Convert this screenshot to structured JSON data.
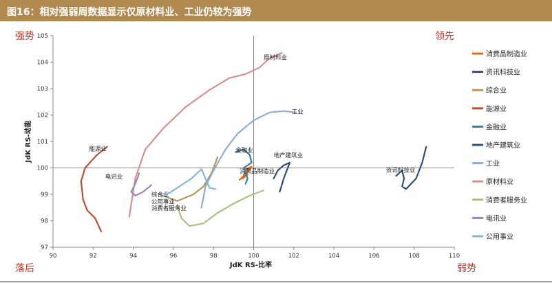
{
  "figure": {
    "title": "图16：相对强弱周数据显示仅原材料业、工业仍较为强势",
    "quadrants": {
      "top_left": "强势",
      "top_right": "领先",
      "bottom_left": "落后",
      "bottom_right": "弱势"
    }
  },
  "chart_data": {
    "type": "line",
    "xlabel": "JdK RS-比率",
    "ylabel": "JdK RS-动能",
    "xlim": [
      90,
      110
    ],
    "ylim": [
      97,
      105
    ],
    "xticks": [
      90,
      92,
      94,
      96,
      98,
      100,
      102,
      104,
      106,
      108,
      110
    ],
    "yticks": [
      97,
      98,
      99,
      100,
      101,
      102,
      103,
      104,
      105
    ],
    "center": [
      100,
      100
    ],
    "legend_position": "right",
    "series": [
      {
        "name": "消费品制造业",
        "color": "#e06c1f",
        "label_at": [
          99.3,
          99.8
        ],
        "points": [
          [
            99.3,
            99.55
          ],
          [
            99.5,
            99.7
          ],
          [
            99.6,
            99.95
          ],
          [
            99.9,
            100.05
          ],
          [
            99.7,
            99.85
          ],
          [
            99.45,
            99.6
          ],
          [
            99.7,
            99.75
          ]
        ]
      },
      {
        "name": "资讯科技业",
        "color": "#2f4e7a",
        "label_at": [
          106.6,
          99.85
        ],
        "points": [
          [
            107.1,
            99.7
          ],
          [
            107.4,
            99.9
          ],
          [
            107.5,
            99.6
          ],
          [
            107.4,
            99.3
          ],
          [
            107.6,
            99.2
          ],
          [
            108.1,
            99.6
          ],
          [
            108.4,
            100.2
          ],
          [
            108.6,
            100.8
          ]
        ]
      },
      {
        "name": "综合业",
        "color": "#b8975a",
        "label_at": [
          94.9,
          98.92
        ],
        "points": [
          [
            95.3,
            99.0
          ],
          [
            96.2,
            98.75
          ],
          [
            97.0,
            99.0
          ],
          [
            97.5,
            99.3
          ],
          [
            97.9,
            99.8
          ],
          [
            98.2,
            100.4
          ]
        ]
      },
      {
        "name": "能源业",
        "color": "#b84f35",
        "label_at": [
          91.8,
          100.65
        ],
        "points": [
          [
            92.4,
            97.6
          ],
          [
            92.1,
            98.1
          ],
          [
            91.7,
            98.4
          ],
          [
            91.5,
            98.8
          ],
          [
            91.4,
            99.5
          ],
          [
            91.6,
            100.0
          ],
          [
            92.2,
            100.5
          ],
          [
            92.7,
            100.8
          ]
        ]
      },
      {
        "name": "金融业",
        "color": "#2e7fa8",
        "label_at": [
          99.1,
          100.6
        ],
        "points": [
          [
            99.1,
            100.6
          ],
          [
            99.5,
            100.7
          ],
          [
            99.8,
            100.5
          ],
          [
            99.9,
            100.2
          ],
          [
            99.5,
            100.0
          ],
          [
            99.7,
            99.6
          ],
          [
            99.6,
            99.4
          ]
        ]
      },
      {
        "name": "地产建筑业",
        "color": "#2f4e7a",
        "label_at": [
          101.0,
          100.4
        ],
        "points": [
          [
            101.0,
            99.6
          ],
          [
            101.2,
            99.9
          ],
          [
            101.5,
            100.1
          ],
          [
            101.8,
            100.2
          ],
          [
            101.5,
            99.6
          ],
          [
            101.3,
            99.1
          ]
        ]
      },
      {
        "name": "工业",
        "color": "#8faad6",
        "label_at": [
          101.9,
          102.05
        ],
        "points": [
          [
            97.4,
            98.5
          ],
          [
            97.6,
            99.3
          ],
          [
            98.0,
            99.9
          ],
          [
            98.6,
            100.7
          ],
          [
            99.2,
            101.3
          ],
          [
            100.0,
            101.8
          ],
          [
            100.8,
            102.1
          ],
          [
            101.5,
            102.15
          ],
          [
            102.1,
            102.1
          ]
        ]
      },
      {
        "name": "原材料业",
        "color": "#d98e91",
        "label_at": [
          100.5,
          104.1
        ],
        "points": [
          [
            93.8,
            98.15
          ],
          [
            94.1,
            99.6
          ],
          [
            94.6,
            100.7
          ],
          [
            95.5,
            101.5
          ],
          [
            96.6,
            102.3
          ],
          [
            97.8,
            102.95
          ],
          [
            98.8,
            103.4
          ],
          [
            99.6,
            103.55
          ],
          [
            100.3,
            103.8
          ],
          [
            100.8,
            104.15
          ],
          [
            101.4,
            104.35
          ]
        ]
      },
      {
        "name": "消费者服务业",
        "color": "#a7c47c",
        "label_at": [
          94.9,
          98.4
        ],
        "points": [
          [
            96.2,
            98.6
          ],
          [
            96.4,
            98.1
          ],
          [
            96.8,
            97.8
          ],
          [
            97.5,
            97.9
          ],
          [
            98.2,
            98.3
          ],
          [
            99.0,
            98.65
          ],
          [
            99.8,
            98.95
          ],
          [
            100.5,
            99.15
          ]
        ]
      },
      {
        "name": "电讯业",
        "color": "#9b86b7",
        "label_at": [
          92.6,
          99.6
        ],
        "points": [
          [
            94.9,
            99.35
          ],
          [
            94.5,
            99.1
          ],
          [
            94.1,
            98.95
          ],
          [
            93.9,
            99.1
          ],
          [
            94.1,
            99.4
          ],
          [
            94.3,
            99.8
          ]
        ]
      },
      {
        "name": "公用事业",
        "color": "#7fb9d6",
        "label_at": [
          94.9,
          98.65
        ],
        "points": [
          [
            95.4,
            98.9
          ],
          [
            95.9,
            99.1
          ],
          [
            96.4,
            99.35
          ],
          [
            96.9,
            99.6
          ],
          [
            97.4,
            99.95
          ],
          [
            97.8,
            99.25
          ],
          [
            98.1,
            99.2
          ]
        ]
      }
    ]
  }
}
